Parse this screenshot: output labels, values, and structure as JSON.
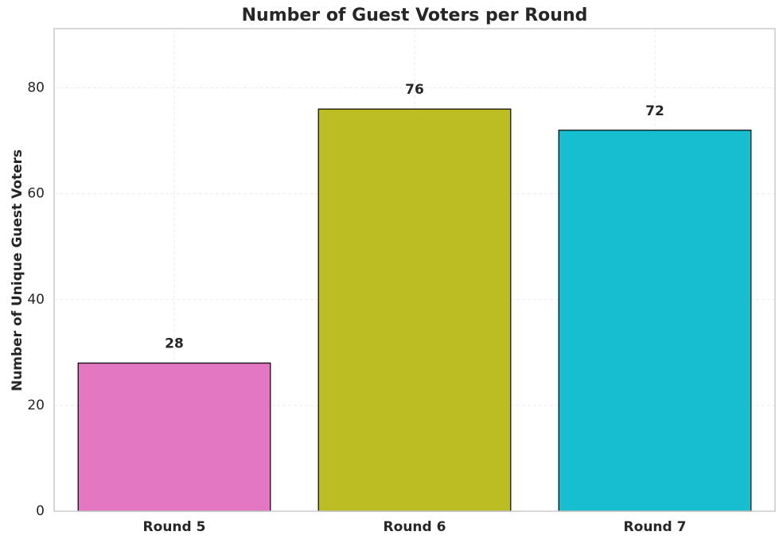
{
  "chart_data": {
    "type": "bar",
    "title": "Number of Guest Voters per Round",
    "y_label": "Number of Unique Guest Voters",
    "categories": [
      "Round 5",
      "Round 6",
      "Round 7"
    ],
    "values": [
      28,
      76,
      72
    ],
    "colors": [
      "#e377c2",
      "#bcbd22",
      "#17becf"
    ],
    "ylim": [
      0,
      91.2
    ],
    "yticks": [
      0,
      20,
      40,
      60,
      80
    ],
    "grid": true
  }
}
